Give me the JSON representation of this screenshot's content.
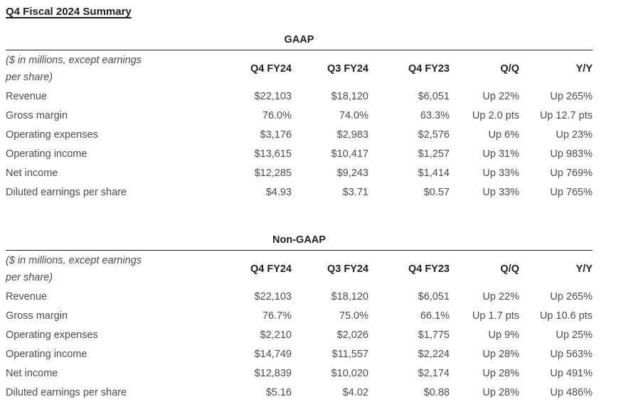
{
  "page_title": "Q4 Fiscal 2024 Summary",
  "note": [
    "($ in millions, except earnings",
    "per share)"
  ],
  "columns": [
    "Q4 FY24",
    "Q3 FY24",
    "Q4 FY23",
    "Q/Q",
    "Y/Y"
  ],
  "colors": {
    "text_primary": "#1f1f1f",
    "text_secondary": "#4c4c4c",
    "rule": "#1f1f1f",
    "background": "#ffffff"
  },
  "gaap": {
    "label": "GAAP",
    "rows": [
      {
        "label": "Revenue",
        "values": [
          "$22,103",
          "$18,120",
          "$6,051",
          "Up 22%",
          "Up 265%"
        ]
      },
      {
        "label": "Gross margin",
        "values": [
          "76.0%",
          "74.0%",
          "63.3%",
          "Up 2.0 pts",
          "Up 12.7 pts"
        ]
      },
      {
        "label": "Operating expenses",
        "values": [
          "$3,176",
          "$2,983",
          "$2,576",
          "Up 6%",
          "Up 23%"
        ]
      },
      {
        "label": "Operating income",
        "values": [
          "$13,615",
          "$10,417",
          "$1,257",
          "Up 31%",
          "Up 983%"
        ]
      },
      {
        "label": "Net income",
        "values": [
          "$12,285",
          "$9,243",
          "$1,414",
          "Up 33%",
          "Up 769%"
        ]
      },
      {
        "label": "Diluted earnings per share",
        "values": [
          "$4.93",
          "$3.71",
          "$0.57",
          "Up 33%",
          "Up 765%"
        ]
      }
    ]
  },
  "non_gaap": {
    "label": "Non-GAAP",
    "rows": [
      {
        "label": "Revenue",
        "values": [
          "$22,103",
          "$18,120",
          "$6,051",
          "Up 22%",
          "Up 265%"
        ]
      },
      {
        "label": "Gross margin",
        "values": [
          "76.7%",
          "75.0%",
          "66.1%",
          "Up 1.7 pts",
          "Up 10.6 pts"
        ]
      },
      {
        "label": "Operating expenses",
        "values": [
          "$2,210",
          "$2,026",
          "$1,775",
          "Up 9%",
          "Up 25%"
        ]
      },
      {
        "label": "Operating income",
        "values": [
          "$14,749",
          "$11,557",
          "$2,224",
          "Up 28%",
          "Up 563%"
        ]
      },
      {
        "label": "Net income",
        "values": [
          "$12,839",
          "$10,020",
          "$2,174",
          "Up 28%",
          "Up 491%"
        ]
      },
      {
        "label": "Diluted earnings per share",
        "values": [
          "$5.16",
          "$4.02",
          "$0.88",
          "Up 28%",
          "Up 486%"
        ]
      }
    ]
  }
}
